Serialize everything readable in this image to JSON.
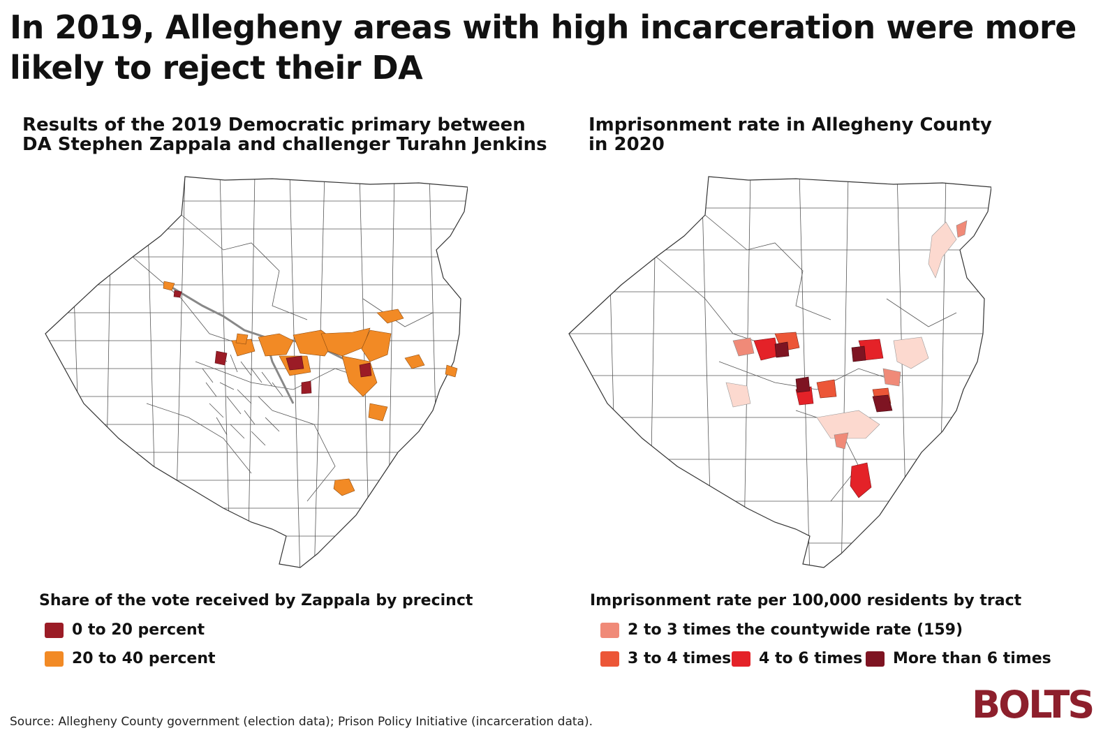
{
  "title": "In 2019, Allegheny areas with high incarceration were more likely to reject their DA",
  "left_panel": {
    "subtitle": "Results of the 2019 Democratic primary between DA Stephen Zappala and challenger Turahn Jenkins",
    "legend_title": "Share of the vote received by Zappala by precinct",
    "legend": [
      {
        "label": "0 to 20 percent",
        "color": "#9b1c26"
      },
      {
        "label": "20 to 40 percent",
        "color": "#f28a25"
      }
    ]
  },
  "right_panel": {
    "subtitle": "Imprisonment rate in Allegheny County in 2020",
    "legend_title": "Imprisonment rate per 100,000 residents by tract",
    "legend": [
      {
        "label": "2 to 3 times the countywide rate (159)",
        "color": "#f08a78"
      },
      {
        "label": "3 to 4 times",
        "color": "#ec5637"
      },
      {
        "label": "4 to 6 times",
        "color": "#e42228"
      },
      {
        "label": "More than 6 times",
        "color": "#7e1422"
      }
    ]
  },
  "source": "Source: Allegheny County government (election data); Prison Policy Initiative (incarceration data).",
  "logo": "BOLTS"
}
